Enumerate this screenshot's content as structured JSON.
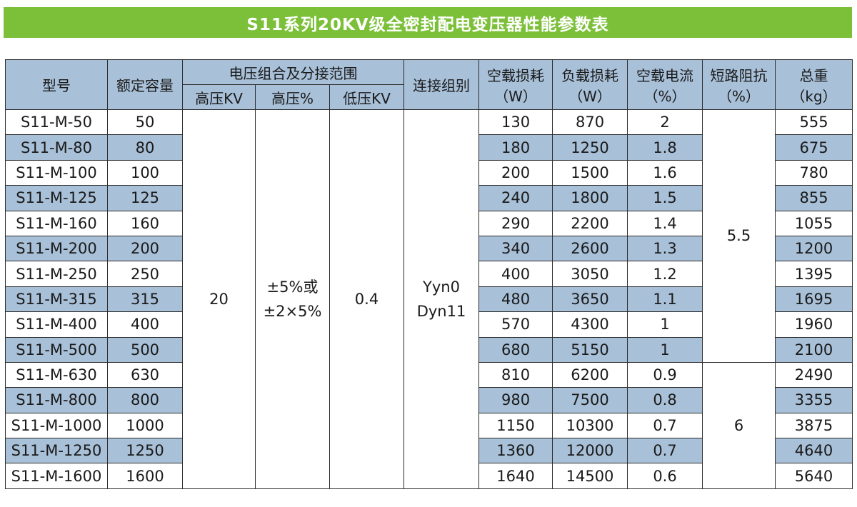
{
  "title": "S11系列20KV级全密封配电变压器性能参数表",
  "headers": {
    "model": "型号",
    "capacity": "额定容量",
    "voltage_group": "电压组合及分接范围",
    "hv_kv": "高压KV",
    "hv_pct": "高压%",
    "lv_kv": "低压KV",
    "connection": "连接组别",
    "noload_loss": [
      "空载损耗",
      "（W）"
    ],
    "load_loss": [
      "负载损耗",
      "（W）"
    ],
    "noload_current": [
      "空载电流",
      "（%）"
    ],
    "impedance": [
      "短路阻抗",
      "（%）"
    ],
    "weight": [
      "总重",
      "（kg）"
    ]
  },
  "merged": {
    "hv_kv": "20",
    "hv_pct": [
      "±5%或",
      "±2×5%"
    ],
    "lv_kv": "0.4",
    "connection": [
      "Yyn0",
      "Dyn11"
    ],
    "impedance_a": "5.5",
    "impedance_b": "6"
  },
  "rows": [
    {
      "model": "S11-M-50",
      "capacity": "50",
      "noload": "130",
      "load": "870",
      "current": "2",
      "weight": "555"
    },
    {
      "model": "S11-M-80",
      "capacity": "80",
      "noload": "180",
      "load": "1250",
      "current": "1.8",
      "weight": "675"
    },
    {
      "model": "S11-M-100",
      "capacity": "100",
      "noload": "200",
      "load": "1500",
      "current": "1.6",
      "weight": "780"
    },
    {
      "model": "S11-M-125",
      "capacity": "125",
      "noload": "240",
      "load": "1800",
      "current": "1.5",
      "weight": "855"
    },
    {
      "model": "S11-M-160",
      "capacity": "160",
      "noload": "290",
      "load": "2200",
      "current": "1.4",
      "weight": "1055"
    },
    {
      "model": "S11-M-200",
      "capacity": "200",
      "noload": "340",
      "load": "2600",
      "current": "1.3",
      "weight": "1200"
    },
    {
      "model": "S11-M-250",
      "capacity": "250",
      "noload": "400",
      "load": "3050",
      "current": "1.2",
      "weight": "1395"
    },
    {
      "model": "S11-M-315",
      "capacity": "315",
      "noload": "480",
      "load": "3650",
      "current": "1.1",
      "weight": "1695"
    },
    {
      "model": "S11-M-400",
      "capacity": "400",
      "noload": "570",
      "load": "4300",
      "current": "1",
      "weight": "1960"
    },
    {
      "model": "S11-M-500",
      "capacity": "500",
      "noload": "680",
      "load": "5150",
      "current": "1",
      "weight": "2100"
    },
    {
      "model": "S11-M-630",
      "capacity": "630",
      "noload": "810",
      "load": "6200",
      "current": "0.9",
      "weight": "2490"
    },
    {
      "model": "S11-M-800",
      "capacity": "800",
      "noload": "980",
      "load": "7500",
      "current": "0.8",
      "weight": "3355"
    },
    {
      "model": "S11-M-1000",
      "capacity": "1000",
      "noload": "1150",
      "load": "10300",
      "current": "0.7",
      "weight": "3875"
    },
    {
      "model": "S11-M-1250",
      "capacity": "1250",
      "noload": "1360",
      "load": "12000",
      "current": "0.7",
      "weight": "4640"
    },
    {
      "model": "S11-M-1600",
      "capacity": "1600",
      "noload": "1640",
      "load": "14500",
      "current": "0.6",
      "weight": "5640"
    }
  ]
}
